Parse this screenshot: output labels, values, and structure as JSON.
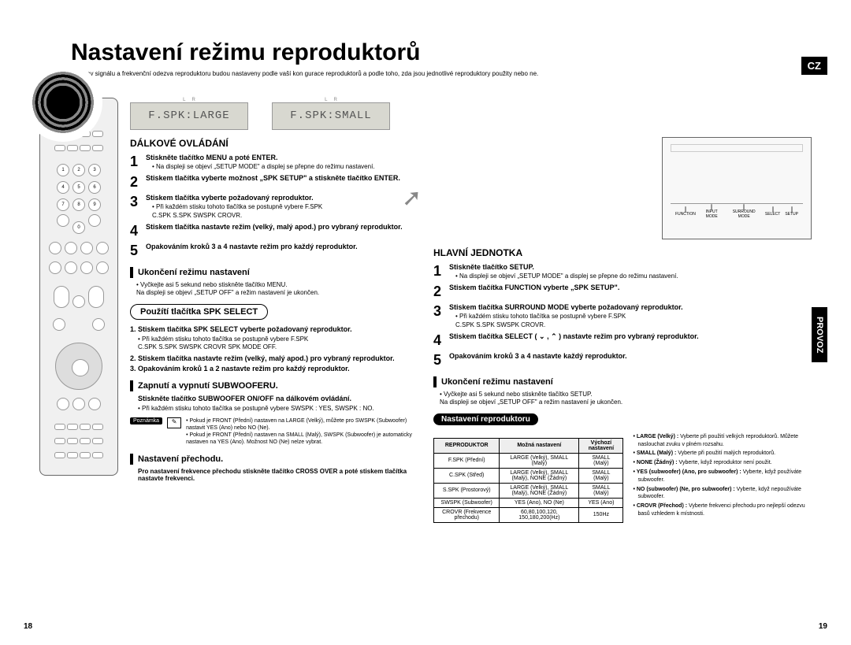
{
  "badge": "CZ",
  "side_tab": "PROVOZ",
  "title": "Nastavení režimu reproduktorů",
  "intro": "Výstupy signálu a frekvenční odezva reproduktoru budou nastaveny podle vaší kon gurace reproduktorů a podle toho, zda jsou jednotlivé reproduktory použity nebo ne.",
  "lcd1": "F.SPK:LARGE",
  "lcd2": "F.SPK:SMALL",
  "remote_h": "DÁLKOVÉ OVLÁDÁNÍ",
  "r_steps": [
    {
      "n": "1",
      "b": "Stiskněte tlačítko MENU a poté ENTER.",
      "d": "• Na displeji se objeví „SETUP MODE\" a displej se přepne do režimu nastavení."
    },
    {
      "n": "2",
      "b": "Stiskem tlačítka       vyberte možnost „SPK SETUP\" a stiskněte tlačítko ENTER.",
      "d": ""
    },
    {
      "n": "3",
      "b": "Stiskem tlačítka       vyberte požadovaný reproduktor.",
      "d": "• Při každém stisku tohoto tlačítka se postupně vybere F.SPK\n    C.SPK    S.SPK    SWSPK    CROVR."
    },
    {
      "n": "4",
      "b": "Stiskem tlačítka       nastavte režim (velký, malý apod.) pro vybraný reproduktor.",
      "d": ""
    },
    {
      "n": "5",
      "b": "Opakováním kroků 3 a 4 nastavte režim pro každý reproduktor.",
      "d": ""
    }
  ],
  "end_h": "Ukončení režimu nastavení",
  "end_t": "• Vyčkejte asi 5 sekund nebo stiskněte tlačítko MENU.\n  Na displeji se objeví „SETUP OFF\" a režim nastavení je ukončen.",
  "spk_pill": "Použítí tlačítka SPK SELECT",
  "spk_steps": [
    {
      "b": "1. Stiskem tlačítka SPK SELECT vyberte požadovaný reproduktor.",
      "d": "• Při každém stisku tohoto tlačítka se postupně vybere F.SPK\n  C.SPK    S.SPK    SWSPK    CROVR    SPK MODE OFF."
    },
    {
      "b": "2. Stiskem tlačítka       nastavte režim (velký, malý apod.) pro vybraný reproduktor.",
      "d": ""
    },
    {
      "b": "3. Opakováním kroků 1 a 2 nastavte režim pro každý reproduktor.",
      "d": ""
    }
  ],
  "sub_h": "Zapnutí a vypnutí SUBWOOFERU.",
  "sub_t": "Stiskněte tlačítko SUBWOOFER ON/OFF na dálkovém ovládání.",
  "sub_d": "• Při každém stisku tohoto tlačítka se postupně vybere SWSPK : YES, SWSPK : NO.",
  "note_label": "Poznámka",
  "note_t": "• Pokud je FRONT (Přední) nastaven na LARGE (Velký), můžete pro SWSPK (Subwoofer) nastavit YES (Ano) nebo NO (Ne).\n• Pokud je FRONT (Přední) nastaven na SMALL (Malý), SWSPK (Subwoofer) je automaticky nastaven na YES (Ano). Možnost NO (Ne) nelze vybrat.",
  "cross_h": "Nastavení přechodu.",
  "cross_t": "Pro nastavení frekvence přechodu stiskněte tlačítko CROSS OVER a poté stiskem tlačítka       nastavte frekvenci.",
  "main_h": "HLAVNÍ JEDNOTKA",
  "m_steps": [
    {
      "n": "1",
      "b": "Stiskněte tlačítko SETUP.",
      "d": "• Na displeji se objeví „SETUP MODE\" a displej se přepne do režimu nastavení."
    },
    {
      "n": "2",
      "b": "Stiskem tlačítka FUNCTION vyberte „SPK SETUP\".",
      "d": ""
    },
    {
      "n": "3",
      "b": "Stiskem tlačítka SURROUND MODE vyberte požadovaný reproduktor.",
      "d": "• Při každém stisku tohoto tlačítka se postupně vybere F.SPK\n    C.SPK    S.SPK    SWSPK    CROVR."
    },
    {
      "n": "4",
      "b": "Stiskem tlačítka SELECT ( ⌄ , ⌃ ) nastavte režim pro vybraný reproduktor.",
      "d": ""
    },
    {
      "n": "5",
      "b": "Opakováním kroků 3 a 4 nastavte každý reproduktor.",
      "d": ""
    }
  ],
  "m_end_t": "• Vyčkejte asi 5 sekund nebo stiskněte tlačítko SETUP.\n  Na displeji se objeví „SETUP OFF\" a režim nastavení je ukončen.",
  "table_pill": "Nastavení reproduktoru",
  "table": {
    "headers": [
      "REPRODUKTOR",
      "Možná nastavení",
      "Výchozí nastavení"
    ],
    "rows": [
      [
        "F.SPK (Přední)",
        "LARGE (Velký), SMALL (Malý)",
        "SMALL (Malý)"
      ],
      [
        "C.SPK (Střed)",
        "LARGE (Velký), SMALL (Malý), NONE (Žádný)",
        "SMALL (Malý)"
      ],
      [
        "S.SPK (Prostorový)",
        "LARGE (Velký), SMALL (Malý), NONE (Žádný)",
        "SMALL (Malý)"
      ],
      [
        "SWSPK (Subwoofer)",
        "YES (Ano), NO (Ne)",
        "YES (Ano)"
      ],
      [
        "CROVR (Frekvence přechodu)",
        "60,80,100,120, 150,180,200(Hz)",
        "150Hz"
      ]
    ]
  },
  "legend": [
    "• LARGE (Velký) : Vyberte při použití velkých reproduktorů. Můžete naslouchat zvuku v plném rozsahu.",
    "• SMALL (Malý) : Vyberte při použití malých reproduktorů.",
    "• NONE (Žádný) : Vyberte, když reproduktor není použit.",
    "• YES (subwoofer) (Ano, pro subwoofer) : Vyberte, když používáte subwoofer.",
    "• NO (subwoofer) (Ne, pro subwoofer) : Vyberte, když nepoužíváte subwoofer.",
    "• CROVR (Přechod) : Vyberte frekvenci přechodu pro nejlepší odezvu basů vzhledem k místnosti."
  ],
  "page_l": "18",
  "page_r": "19",
  "panel_labels": [
    "FUNCTION",
    "INPUT MODE",
    "SURROUND MODE",
    "SELECT",
    "SETUP"
  ]
}
